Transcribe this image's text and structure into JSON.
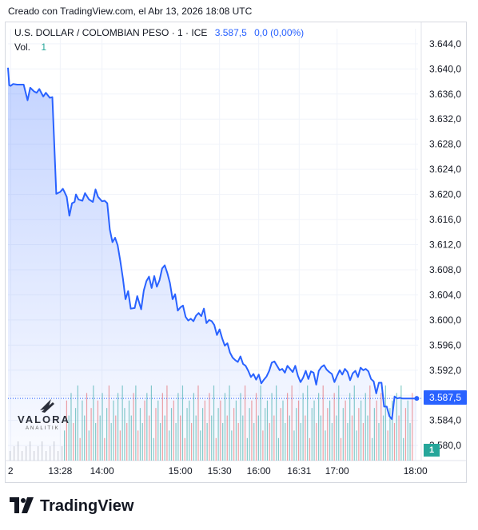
{
  "header": {
    "created": "Creado con TradingView.com, el Abr 13, 2026 18:08 UTC"
  },
  "legend": {
    "symbol": "U.S. DOLLAR / COLOMBIAN PESO · 1 · ICE",
    "last": "3.587,5",
    "change": "0,0 (0,00%)",
    "vol_label": "Vol.",
    "vol_value": "1"
  },
  "price_tag": "3.587,5",
  "vol_tag": "1",
  "watermark": {
    "word": "VALORA",
    "sub": "ANALITIK"
  },
  "brand": {
    "name": "TradingView"
  },
  "colors": {
    "line": "#2962ff",
    "vol_up": "#26a69a",
    "vol_down": "#ef5350",
    "grid": "#f0f3fa"
  },
  "chart_data": {
    "type": "area",
    "title": "U.S. DOLLAR / COLOMBIAN PESO · 1 · ICE",
    "ylim": [
      3577.6,
      3646.4
    ],
    "y_ticks": [
      "3.644,0",
      "3.640,0",
      "3.636,0",
      "3.632,0",
      "3.628,0",
      "3.624,0",
      "3.620,0",
      "3.616,0",
      "3.612,0",
      "3.608,0",
      "3.604,0",
      "3.600,0",
      "3.596,0",
      "3.592,0",
      "3.588,0",
      "3.584,0",
      "3.580,0"
    ],
    "y_tick_values": [
      3644,
      3640,
      3636,
      3632,
      3628,
      3624,
      3620,
      3616,
      3612,
      3608,
      3604,
      3600,
      3596,
      3592,
      3588,
      3584,
      3580
    ],
    "x_ticks": [
      "2",
      "13:28",
      "14:00",
      "15:00",
      "15:30",
      "16:00",
      "16:31",
      "17:00",
      "18:00"
    ],
    "x_tick_minutes": [
      -10,
      28,
      60,
      120,
      150,
      180,
      211,
      240,
      300
    ],
    "x_range_minutes": [
      -12,
      302
    ],
    "grid": true,
    "series": [
      {
        "values_x_minutes": [
          -12,
          -11,
          -10,
          -8,
          -5,
          0,
          3,
          5,
          8,
          10,
          12,
          15,
          17,
          20,
          22,
          25,
          28,
          30,
          31,
          33,
          35,
          37,
          39,
          40,
          42,
          45,
          47,
          50,
          53,
          55,
          57,
          60,
          62,
          64,
          66,
          68,
          70,
          72,
          74,
          76,
          78,
          80,
          82,
          85,
          87,
          90,
          92,
          94,
          96,
          98,
          100,
          102,
          104,
          106,
          108,
          110,
          112,
          114,
          116,
          118,
          120,
          122,
          124,
          126,
          128,
          130,
          132,
          134,
          136,
          138,
          140,
          142,
          144,
          146,
          148,
          150,
          152,
          154,
          156,
          158,
          160,
          162,
          164,
          166,
          168,
          170,
          172,
          174,
          176,
          178,
          180,
          182,
          184,
          186,
          188,
          190,
          192,
          194,
          196,
          198,
          200,
          202,
          204,
          206,
          208,
          210,
          212,
          214,
          216,
          218,
          220,
          222,
          224,
          226,
          228,
          230,
          232,
          234,
          236,
          238,
          240,
          242,
          244,
          246,
          248,
          250,
          252,
          254,
          256,
          258,
          260,
          262,
          264,
          266,
          268,
          270,
          272,
          274,
          276,
          278,
          280,
          282,
          284,
          286,
          288,
          290,
          292,
          294,
          296,
          298,
          300,
          301
        ],
        "values_y": [
          3640.2,
          3637.4,
          3637.3,
          3637.6,
          3637.5,
          3637.5,
          3635.0,
          3637.0,
          3636.4,
          3636.2,
          3636.8,
          3635.6,
          3636.2,
          3635.4,
          3635.5,
          3620.1,
          3620.4,
          3620.9,
          3620.5,
          3619.6,
          3616.6,
          3618.6,
          3618.8,
          3620.0,
          3619.2,
          3619.0,
          3620.2,
          3619.2,
          3618.8,
          3620.8,
          3619.6,
          3618.9,
          3619.0,
          3618.6,
          3614.4,
          3612.4,
          3613.1,
          3611.9,
          3609.4,
          3606.6,
          3603.3,
          3604.6,
          3601.8,
          3601.9,
          3603.8,
          3601.7,
          3604.7,
          3606.2,
          3606.9,
          3605.1,
          3607.0,
          3605.3,
          3606.3,
          3608.2,
          3608.7,
          3607.5,
          3605.9,
          3603.3,
          3604.1,
          3601.5,
          3602.0,
          3602.3,
          3600.5,
          3599.9,
          3600.2,
          3599.8,
          3600.7,
          3601.1,
          3600.6,
          3601.8,
          3599.5,
          3600.0,
          3599.8,
          3599.2,
          3597.6,
          3598.5,
          3597.1,
          3595.9,
          3596.3,
          3594.8,
          3594.0,
          3593.6,
          3593.3,
          3594.2,
          3593.0,
          3592.7,
          3591.9,
          3590.9,
          3591.4,
          3590.5,
          3591.3,
          3589.9,
          3590.5,
          3591.0,
          3591.9,
          3593.2,
          3593.4,
          3592.7,
          3592.0,
          3592.2,
          3591.6,
          3592.7,
          3592.2,
          3591.7,
          3592.7,
          3591.1,
          3590.1,
          3590.8,
          3591.9,
          3590.6,
          3591.8,
          3591.6,
          3589.7,
          3591.9,
          3592.5,
          3592.8,
          3592.1,
          3591.7,
          3591.4,
          3590.1,
          3591.1,
          3592.0,
          3591.3,
          3592.2,
          3591.7,
          3590.4,
          3591.5,
          3591.9,
          3590.9,
          3592.4,
          3592.0,
          3592.2,
          3591.8,
          3590.6,
          3590.2,
          3588.3,
          3590.0,
          3590.0,
          3586.2,
          3586.2,
          3584.7,
          3584.2,
          3587.8,
          3587.5,
          3587.6,
          3587.5,
          3587.5,
          3587.5,
          3587.5,
          3587.5,
          3587.5,
          3587.5,
          3587.5
        ]
      }
    ],
    "volume": {
      "label": "Vol.",
      "ylim": [
        0,
        1.35
      ],
      "up": [
        1,
        0,
        1,
        1,
        0,
        1,
        1,
        0,
        1,
        1,
        0,
        1,
        0,
        1,
        1,
        0,
        1,
        1,
        0,
        1,
        0,
        1,
        1,
        0,
        1,
        0,
        1,
        1,
        0,
        1,
        1,
        0,
        1,
        0,
        1,
        1,
        0,
        1,
        0,
        1,
        1,
        0,
        1,
        1,
        0,
        1,
        0,
        1,
        1,
        0,
        1,
        1,
        0,
        1,
        0,
        1,
        1,
        0,
        1,
        1,
        0,
        1,
        1,
        0,
        1,
        0,
        1,
        1,
        0,
        1,
        0,
        1,
        1,
        0,
        1,
        1,
        0,
        1,
        0,
        1,
        1,
        0,
        1,
        1,
        0,
        1,
        0,
        1,
        1,
        0,
        1,
        1,
        0,
        1,
        0,
        1,
        1,
        0,
        1,
        1,
        0,
        1,
        0,
        1,
        1,
        0,
        1,
        1,
        0,
        1,
        0,
        1,
        1,
        0,
        1,
        1,
        0,
        1,
        0,
        1,
        1,
        0,
        1,
        1,
        0,
        1,
        0,
        1,
        1,
        0,
        1,
        1,
        0,
        1,
        0,
        1,
        1,
        0,
        1,
        1,
        0,
        1,
        0,
        1,
        1,
        0,
        1,
        1,
        0,
        1,
        0,
        1,
        1,
        0,
        1,
        1,
        0,
        1
      ],
      "values": [
        0.4,
        0.8,
        0.6,
        0.9,
        0.5,
        0.7,
        1.0,
        0.3,
        0.8,
        0.6,
        0.9,
        0.4,
        0.7,
        1.0,
        0.5,
        0.8,
        0.6,
        0.9,
        0.3,
        0.7,
        1.0,
        0.5,
        0.8,
        0.6,
        0.9,
        0.4,
        1.0,
        0.7,
        0.5,
        0.8,
        0.6,
        0.9,
        1.0,
        0.4,
        0.7,
        0.5,
        0.8,
        0.9,
        0.6,
        1.0,
        0.3,
        0.7,
        0.8,
        0.5,
        0.9,
        0.6,
        1.0,
        0.4,
        0.7,
        0.8,
        0.5,
        0.9,
        0.6,
        1.0,
        0.3,
        0.7,
        0.8,
        0.5,
        0.9,
        0.6,
        1.0,
        0.4,
        0.7,
        0.8,
        0.5,
        0.9,
        0.6,
        1.0,
        0.3,
        0.7,
        0.8,
        0.5,
        0.9,
        0.6,
        1.0,
        0.4,
        0.7,
        0.8,
        0.5,
        0.9,
        0.6,
        1.0,
        0.3,
        0.7,
        0.8,
        0.5,
        0.9,
        0.6,
        1.0,
        0.4,
        0.7,
        0.8,
        0.5,
        0.9,
        0.6,
        1.0,
        0.3,
        0.7,
        0.8,
        0.5,
        0.9,
        0.6,
        1.0,
        0.4,
        0.7,
        0.8,
        0.5,
        0.9,
        0.6,
        1.0,
        0.3,
        0.7,
        0.8,
        0.5,
        0.9,
        0.6,
        1.0,
        0.4,
        0.7,
        0.8,
        0.5,
        0.9,
        0.6,
        1.0,
        0.3,
        0.7,
        0.8,
        0.5,
        0.9,
        0.6,
        1.0,
        0.4,
        0.7,
        0.8,
        0.5,
        0.9,
        0.6,
        1.0,
        0.3,
        0.7,
        0.8,
        0.5,
        0.9,
        0.6,
        1.0,
        0.4,
        0.7,
        0.8,
        0.5,
        0.9,
        0.6,
        1.0,
        0.3,
        0.7,
        0.8,
        0.5,
        0.9
      ]
    }
  }
}
